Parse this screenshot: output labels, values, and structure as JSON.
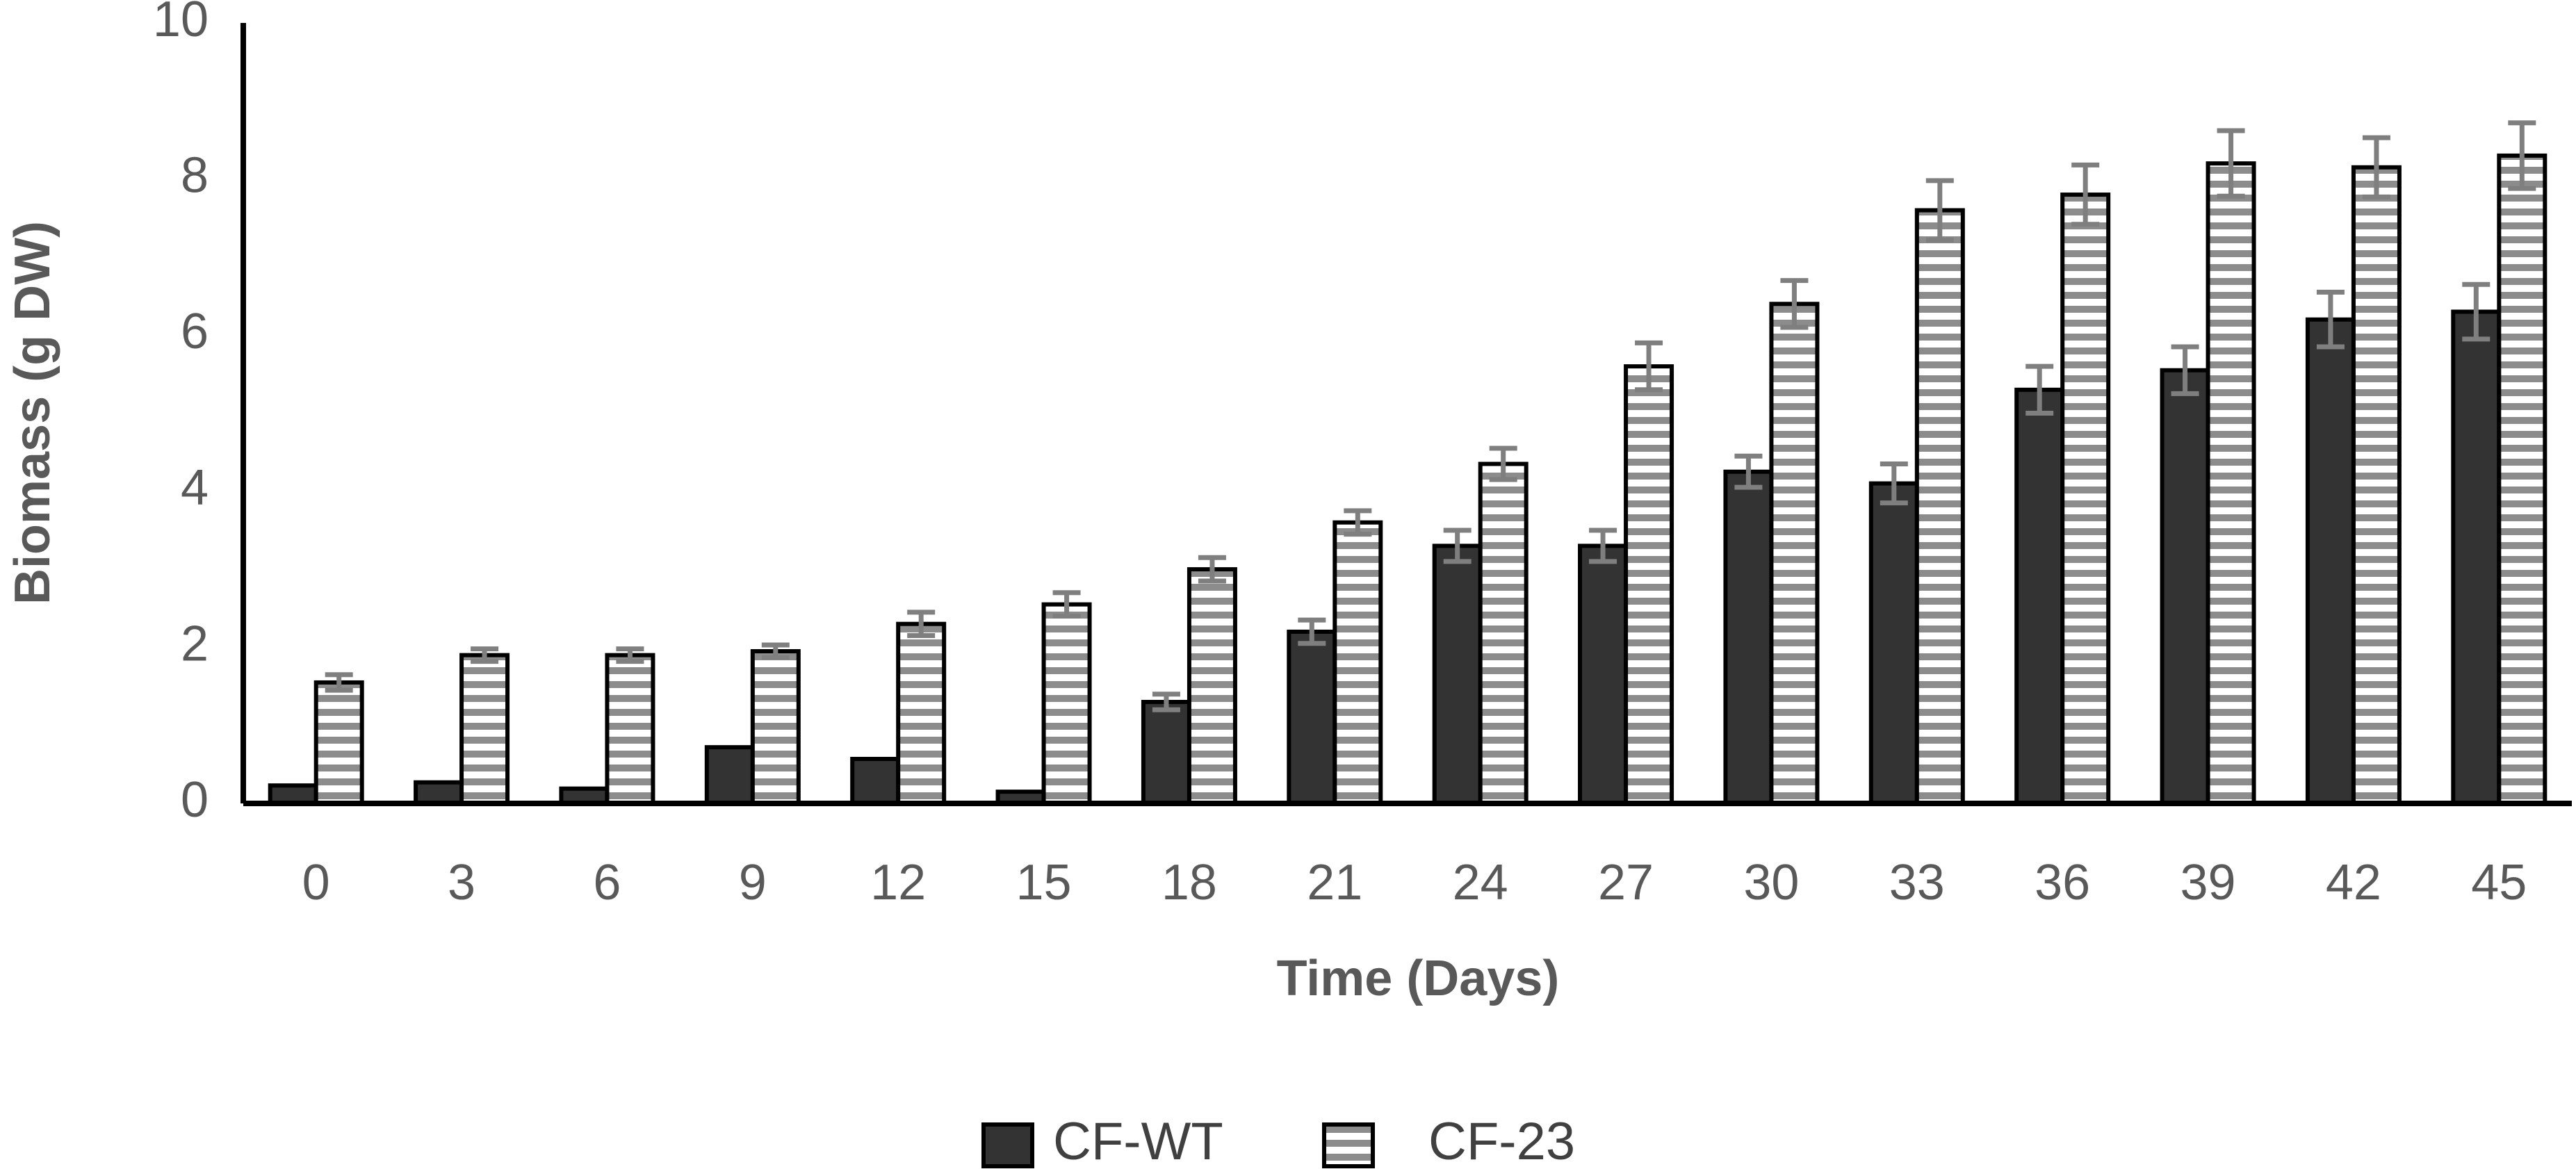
{
  "chart_data": {
    "type": "bar",
    "x_label": "Time (Days)",
    "y_label": "Biomass (g DW)",
    "categories": [
      "0",
      "3",
      "6",
      "9",
      "12",
      "15",
      "18",
      "21",
      "24",
      "27",
      "30",
      "33",
      "36",
      "39",
      "42",
      "45"
    ],
    "series": [
      {
        "name": "CF-WT",
        "color": "#333333",
        "values": [
          0.23,
          0.27,
          0.19,
          0.72,
          0.57,
          0.15,
          1.3,
          2.2,
          3.3,
          3.3,
          4.25,
          4.1,
          5.3,
          5.55,
          6.2,
          6.3
        ],
        "errors": [
          0,
          0,
          0,
          0,
          0,
          0,
          0.1,
          0.15,
          0.2,
          0.2,
          0.2,
          0.25,
          0.3,
          0.3,
          0.35,
          0.35
        ]
      },
      {
        "name": "CF-23",
        "color": "#8c8c8c",
        "values": [
          1.55,
          1.9,
          1.9,
          1.95,
          2.3,
          2.55,
          3.0,
          3.6,
          4.35,
          5.6,
          6.4,
          7.6,
          7.8,
          8.2,
          8.15,
          8.3
        ],
        "errors": [
          0.1,
          0.08,
          0.08,
          0.08,
          0.15,
          0.15,
          0.15,
          0.15,
          0.2,
          0.3,
          0.3,
          0.38,
          0.38,
          0.42,
          0.38,
          0.42
        ]
      }
    ],
    "ylim": [
      0,
      10
    ],
    "yticks": [
      0,
      2,
      4,
      6,
      8,
      10
    ],
    "grid": false,
    "legend": "bottom"
  }
}
